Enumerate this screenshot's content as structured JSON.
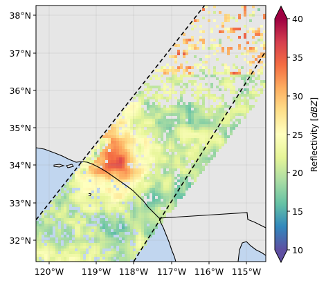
{
  "chart_data": {
    "type": "heatmap",
    "title": "",
    "xlabel": "",
    "ylabel": "",
    "longitude_ticks": [
      "120°W",
      "119°W",
      "118°W",
      "117°W",
      "116°W",
      "115°W"
    ],
    "latitude_ticks": [
      "38°N",
      "37°N",
      "36°N",
      "35°N",
      "34°N",
      "33°N",
      "32°N"
    ],
    "longitude_range": [
      -120.4,
      -114.4
    ],
    "latitude_range": [
      31.5,
      38.25
    ],
    "grid": true,
    "swath_edges": [
      {
        "name": "left",
        "from": [
          -120.4,
          32.6
        ],
        "to": [
          -116.0,
          38.25
        ]
      },
      {
        "name": "right",
        "from": [
          -117.85,
          31.5
        ],
        "to": [
          -114.4,
          37.05
        ]
      }
    ],
    "colorbar": {
      "label": "Reflectivity [dBZ]",
      "label_prefix": "Reflectivity [",
      "label_unit": "dBZ",
      "label_suffix": "]",
      "ticks": [
        "10",
        "15",
        "20",
        "25",
        "30",
        "35",
        "40"
      ],
      "range": [
        10,
        40
      ],
      "extend": "both",
      "colormap": "Spectral_r"
    },
    "colors": {
      "background": "#e6e6e6",
      "land": "#e6e6e6",
      "ocean": "#c1d6ef",
      "coastline": "#000000",
      "swath_edge": "#000000"
    }
  }
}
